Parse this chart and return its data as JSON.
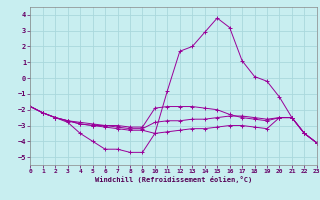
{
  "xlabel": "Windchill (Refroidissement éolien,°C)",
  "ylabel": "",
  "xlim": [
    0,
    23
  ],
  "ylim": [
    -5.5,
    4.5
  ],
  "background_color": "#c8eef0",
  "grid_color": "#aad8dc",
  "line_color": "#990099",
  "xticks": [
    0,
    1,
    2,
    3,
    4,
    5,
    6,
    7,
    8,
    9,
    10,
    11,
    12,
    13,
    14,
    15,
    16,
    17,
    18,
    19,
    20,
    21,
    22,
    23
  ],
  "yticks": [
    -5,
    -4,
    -3,
    -2,
    -1,
    0,
    1,
    2,
    3,
    4
  ],
  "curves": [
    {
      "x": [
        0,
        1,
        2,
        3,
        4,
        5,
        6,
        7,
        8,
        9,
        10,
        11,
        12,
        13,
        14,
        15,
        16,
        17,
        18,
        19,
        20,
        21,
        22,
        23
      ],
      "y": [
        -1.8,
        -2.2,
        -2.5,
        -2.8,
        -3.5,
        -4.0,
        -4.5,
        -4.5,
        -4.7,
        -4.7,
        -3.5,
        -0.8,
        1.7,
        2.0,
        2.9,
        3.8,
        3.2,
        1.1,
        0.1,
        -0.2,
        -1.2,
        -2.5,
        -3.5,
        -4.1
      ]
    },
    {
      "x": [
        0,
        1,
        2,
        3,
        4,
        5,
        6,
        7,
        8,
        9,
        10,
        11,
        12,
        13,
        14,
        15,
        16,
        17,
        18,
        19,
        20,
        21,
        22,
        23
      ],
      "y": [
        -1.8,
        -2.2,
        -2.5,
        -2.7,
        -2.8,
        -2.9,
        -3.0,
        -3.0,
        -3.1,
        -3.1,
        -1.9,
        -1.8,
        -1.8,
        -1.8,
        -1.9,
        -2.0,
        -2.3,
        -2.5,
        -2.6,
        -2.7,
        -2.5,
        -2.5,
        -3.5,
        -4.1
      ]
    },
    {
      "x": [
        0,
        1,
        2,
        3,
        4,
        5,
        6,
        7,
        8,
        9,
        10,
        11,
        12,
        13,
        14,
        15,
        16,
        17,
        18,
        19,
        20,
        21,
        22,
        23
      ],
      "y": [
        -1.8,
        -2.2,
        -2.5,
        -2.7,
        -2.9,
        -3.0,
        -3.0,
        -3.1,
        -3.2,
        -3.2,
        -2.8,
        -2.7,
        -2.7,
        -2.6,
        -2.6,
        -2.5,
        -2.4,
        -2.4,
        -2.5,
        -2.6,
        -2.5,
        -2.5,
        -3.5,
        -4.1
      ]
    },
    {
      "x": [
        0,
        1,
        2,
        3,
        4,
        5,
        6,
        7,
        8,
        9,
        10,
        11,
        12,
        13,
        14,
        15,
        16,
        17,
        18,
        19,
        20,
        21,
        22,
        23
      ],
      "y": [
        -1.8,
        -2.2,
        -2.5,
        -2.7,
        -2.9,
        -3.0,
        -3.1,
        -3.2,
        -3.3,
        -3.3,
        -3.5,
        -3.4,
        -3.3,
        -3.2,
        -3.2,
        -3.1,
        -3.0,
        -3.0,
        -3.1,
        -3.2,
        -2.5,
        -2.5,
        -3.5,
        -4.1
      ]
    }
  ]
}
